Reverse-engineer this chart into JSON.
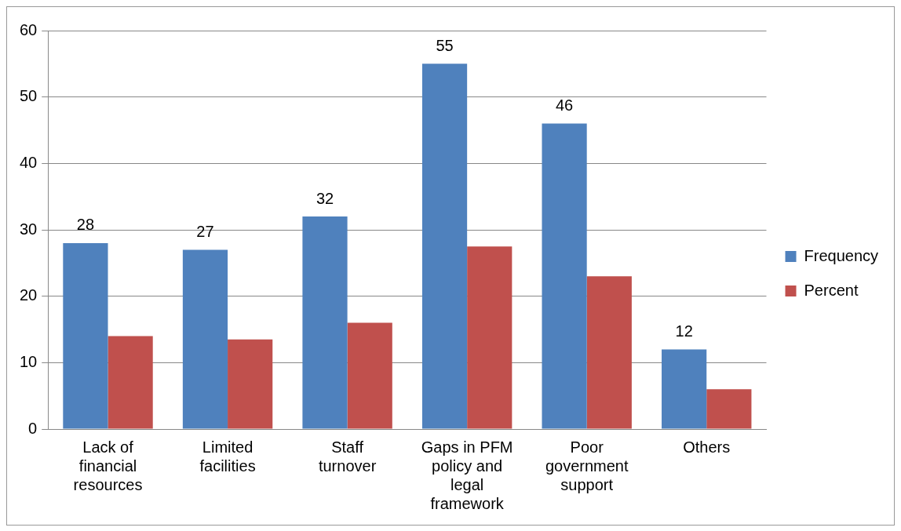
{
  "chart_data": {
    "type": "bar",
    "categories": [
      "Lack of financial resources",
      "Limited facilities",
      "Staff turnover",
      "Gaps in PFM policy and legal framework",
      "Poor government support",
      "Others"
    ],
    "series": [
      {
        "name": "Frequency",
        "color": "#4f81bd",
        "values": [
          28,
          27,
          32,
          55,
          46,
          12
        ],
        "value_labels": [
          "28",
          "27",
          "32",
          "55",
          "46",
          "12"
        ]
      },
      {
        "name": "Percent",
        "color": "#c0504d",
        "values": [
          14,
          13.5,
          16,
          27.5,
          23,
          6
        ]
      }
    ],
    "ylim": [
      0,
      60
    ],
    "yticks": [
      0,
      10,
      20,
      30,
      40,
      50,
      60
    ],
    "grid": "y",
    "legend": "right"
  }
}
